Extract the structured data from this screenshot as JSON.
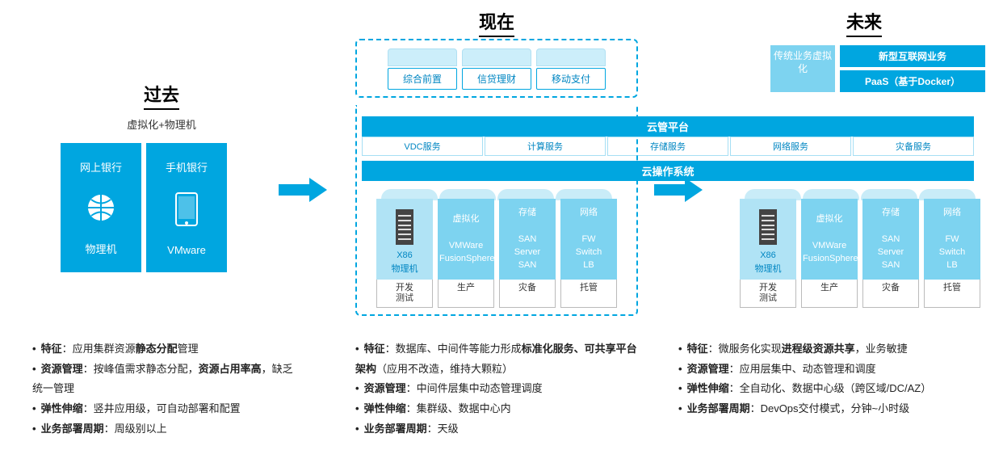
{
  "colors": {
    "primary": "#00a6e0",
    "light": "#7dd3f0",
    "pale": "#cceefa",
    "text_blue": "#0086c2"
  },
  "past": {
    "title": "过去",
    "subtitle": "虚拟化+物理机",
    "card1_top": "网上银行",
    "card1_bottom": "物理机",
    "card2_top": "手机银行",
    "card2_bottom": "VMware",
    "bullets_html": "<li><b>特征</b>：应用集群资源<b>静态分配</b>管理</li><li><b>资源管理</b>：按峰值需求静态分配，<b>资源占用率高</b>，缺乏统一管理</li><li><b>弹性伸缩</b>：竖井应用级，可自动部署和配置</li><li><b>业务部署周期</b>：周级别以上</li>"
  },
  "present": {
    "title": "现在",
    "top_tabs": [
      "综合前置",
      "信贷理财",
      "移动支付"
    ],
    "band1": "云管平台",
    "svcs": [
      "VDC服务",
      "计算服务",
      "存储服务",
      "网络服务",
      "灾备服务"
    ],
    "band2": "云操作系统",
    "res": [
      {
        "head": "",
        "lines": [
          "X86",
          "物理机"
        ],
        "foot": "开发\n测试",
        "first": true
      },
      {
        "head": "虚拟化",
        "lines": [
          "VMWare",
          "FusionSphere"
        ],
        "foot": "生产"
      },
      {
        "head": "存储",
        "lines": [
          "SAN",
          "Server",
          "SAN"
        ],
        "foot": "灾备"
      },
      {
        "head": "网络",
        "lines": [
          "FW",
          "Switch",
          "LB"
        ],
        "foot": "托管"
      }
    ],
    "bullets_html": "<li><b>特征</b>：数据库、中间件等能力形成<b>标准化服务、可共享平台架构</b>（应用不改造，维持大颗粒）</li><li><b>资源管理</b>：中间件层集中动态管理调度</li><li><b>弹性伸缩</b>：集群级、数据中心内</li><li><b>业务部署周期</b>：天级</li>"
  },
  "future": {
    "title": "未来",
    "box_a": "传统业务虚拟化",
    "box_b": "新型互联网业务",
    "box_c": "PaaS（基于Docker）",
    "res": [
      {
        "head": "",
        "lines": [
          "X86",
          "物理机"
        ],
        "foot": "开发\n测试",
        "first": true
      },
      {
        "head": "虚拟化",
        "lines": [
          "VMWare",
          "FusionSphere"
        ],
        "foot": "生产"
      },
      {
        "head": "存储",
        "lines": [
          "SAN",
          "Server",
          "SAN"
        ],
        "foot": "灾备"
      },
      {
        "head": "网络",
        "lines": [
          "FW",
          "Switch",
          "LB"
        ],
        "foot": "托管"
      }
    ],
    "bullets_html": "<li><b>特征</b>：微服务化实现<b>进程级资源共享</b>，业务敏捷</li><li><b>资源管理</b>：应用层集中、动态管理和调度</li><li><b>弹性伸缩</b>：全自动化、数据中心级（跨区域/DC/AZ）</li><li><b>业务部署周期</b>：DevOps交付模式，分钟~小时级</li>"
  }
}
